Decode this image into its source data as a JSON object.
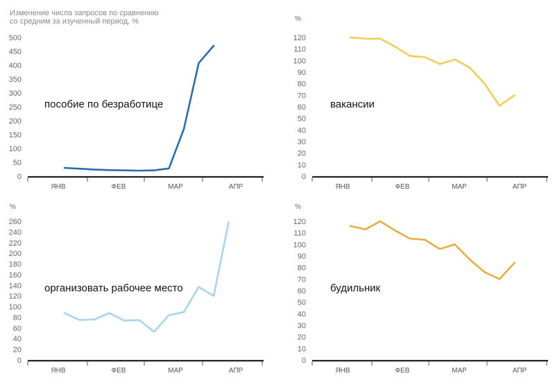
{
  "header": {
    "subtitle": "Изменение числа запросов по сравнению\nсо средним за изученный период, %"
  },
  "chart_data": [
    {
      "type": "line",
      "title": "пособие по безработице",
      "ylabel": "",
      "ylim": [
        0,
        500
      ],
      "yticks": [
        0,
        50,
        100,
        150,
        200,
        250,
        300,
        350,
        400,
        450,
        500
      ],
      "xticklabels": [
        "ЯНВ",
        "ФЕВ",
        "МАР",
        "АПР"
      ],
      "color": "#2b6cb0",
      "values": [
        30,
        27,
        24,
        22,
        21,
        20,
        21,
        28,
        170,
        408,
        470
      ]
    },
    {
      "type": "line",
      "title": "вакансии",
      "ylabel": "%",
      "ylim": [
        0,
        120
      ],
      "yticks": [
        0,
        10,
        20,
        30,
        40,
        50,
        60,
        70,
        80,
        90,
        100,
        110,
        120
      ],
      "xticklabels": [
        "ЯНВ",
        "ФЕВ",
        "МАР",
        "АПР"
      ],
      "color": "#f2cd5c",
      "values": [
        120,
        119,
        119,
        112,
        104,
        103,
        97,
        101,
        94,
        80,
        61,
        70
      ]
    },
    {
      "type": "line",
      "title": "организовать рабочее место",
      "ylabel": "%",
      "ylim": [
        0,
        260
      ],
      "yticks": [
        0,
        20,
        40,
        60,
        80,
        100,
        120,
        140,
        160,
        180,
        200,
        220,
        240,
        260
      ],
      "xticklabels": [
        "ЯНВ",
        "ФЕВ",
        "МАР",
        "АПР"
      ],
      "color": "#a8d4ef",
      "values": [
        88,
        75,
        76,
        88,
        74,
        75,
        53,
        84,
        90,
        137,
        120,
        258
      ]
    },
    {
      "type": "line",
      "title": "будильник",
      "ylabel": "%",
      "ylim": [
        0,
        120
      ],
      "yticks": [
        0,
        10,
        20,
        30,
        40,
        50,
        60,
        70,
        80,
        90,
        100,
        110,
        120
      ],
      "xticklabels": [
        "ЯНВ",
        "ФЕВ",
        "МАР",
        "АПР"
      ],
      "color": "#e8ab45",
      "values": [
        116,
        113,
        120,
        112,
        105,
        104,
        96,
        100,
        87,
        76,
        70,
        84
      ]
    }
  ]
}
